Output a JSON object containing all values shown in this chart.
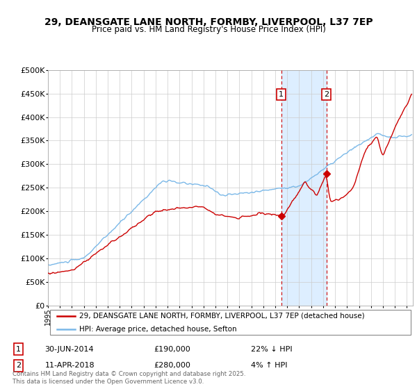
{
  "title_line1": "29, DEANSGATE LANE NORTH, FORMBY, LIVERPOOL, L37 7EP",
  "title_line2": "Price paid vs. HM Land Registry's House Price Index (HPI)",
  "hpi_color": "#7ab8e8",
  "price_color": "#cc0000",
  "highlight_fill": "#ddeeff",
  "vline_color": "#cc0000",
  "annotation1_label": "1",
  "annotation1_date": "30-JUN-2014",
  "annotation1_price": 190000,
  "annotation1_text": "22% ↓ HPI",
  "annotation2_label": "2",
  "annotation2_date": "11-APR-2018",
  "annotation2_price": 280000,
  "annotation2_text": "4% ↑ HPI",
  "legend_line1": "29, DEANSGATE LANE NORTH, FORMBY, LIVERPOOL, L37 7EP (detached house)",
  "legend_line2": "HPI: Average price, detached house, Sefton",
  "footer": "Contains HM Land Registry data © Crown copyright and database right 2025.\nThis data is licensed under the Open Government Licence v3.0.",
  "ylim": [
    0,
    500000
  ],
  "yticks": [
    0,
    50000,
    100000,
    150000,
    200000,
    250000,
    300000,
    350000,
    400000,
    450000,
    500000
  ],
  "sale1_x": 2014.5,
  "sale2_x": 2018.28,
  "sale1_y": 190000,
  "sale2_y": 280000,
  "xmin": 1995,
  "xmax": 2025.5
}
